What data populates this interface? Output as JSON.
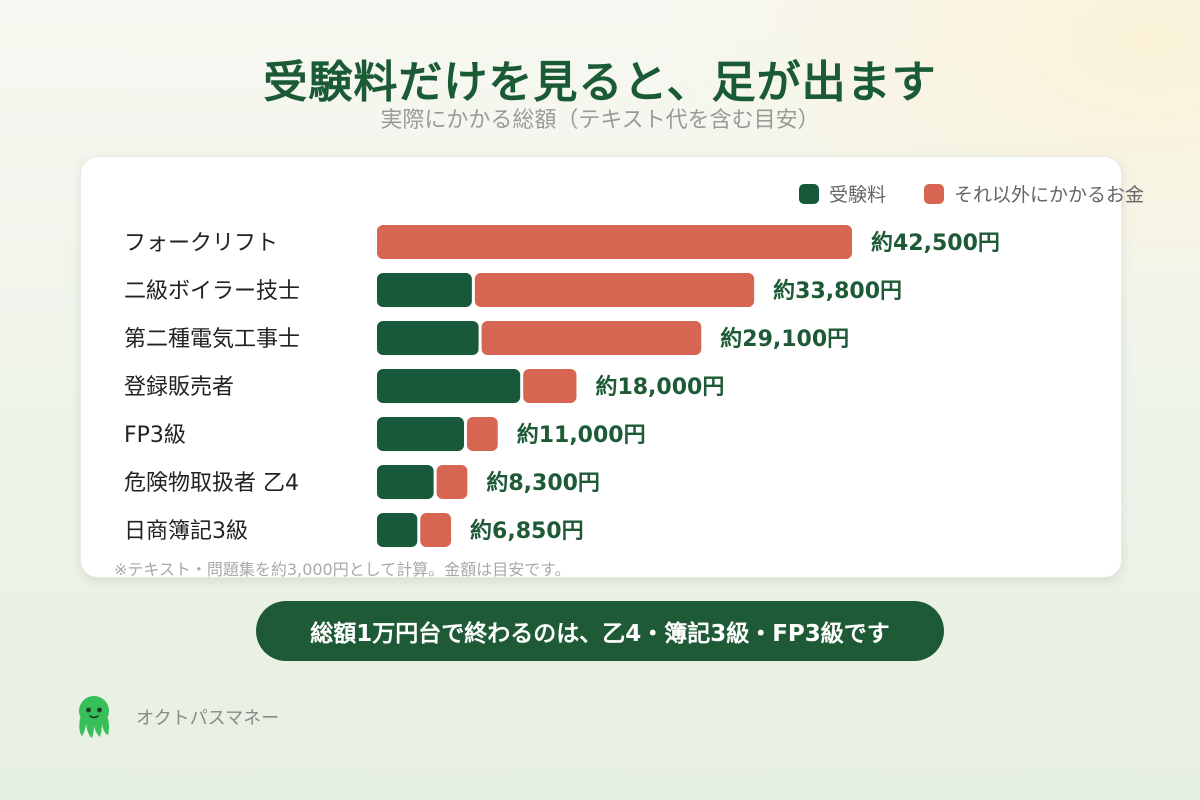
{
  "title": "受験料だけを見ると、足が出ます",
  "subtitle": "実際にかかる総額（テキスト代を含む目安）",
  "legend": {
    "exam_fee": "受験料",
    "other_cost": "それ以外にかかるお金"
  },
  "colors": {
    "exam_fee": "#17593a",
    "other_cost": "#d66552",
    "label": "#1e5a36"
  },
  "chart_data": {
    "type": "bar",
    "orientation": "horizontal",
    "stacked": true,
    "title": "受験料だけを見ると、足が出ます",
    "subtitle": "実際にかかる総額（テキスト代を含む目安）",
    "legend_position": "top-right",
    "categories": [
      "フォークリフト",
      "二級ボイラー技士",
      "第二種電気工事士",
      "登録販売者",
      "FP3級",
      "危険物取扱者 乙4",
      "日商簿記3級"
    ],
    "series": [
      {
        "name": "受験料",
        "values": [
          0,
          8700,
          9300,
          13000,
          8000,
          5300,
          3850
        ]
      },
      {
        "name": "それ以外にかかるお金",
        "values": [
          42500,
          25100,
          19800,
          5000,
          3000,
          3000,
          3000
        ]
      }
    ],
    "totals": [
      42500,
      33800,
      29100,
      18000,
      11000,
      8300,
      6850
    ],
    "value_labels": [
      "約42,500円",
      "約33,800円",
      "約29,100円",
      "約18,000円",
      "約11,000円",
      "約8,300円",
      "約6,850円"
    ],
    "xlim": [
      0,
      42500
    ],
    "grid": false
  },
  "footnote": "※テキスト・問題集を約3,000円として計算。金額は目安です。",
  "summary": "総額1万円台で終わるのは、乙4・簿記3級・FP3級です",
  "brand": {
    "name": "オクトパスマネー",
    "logo_icon": "octopus-icon"
  }
}
